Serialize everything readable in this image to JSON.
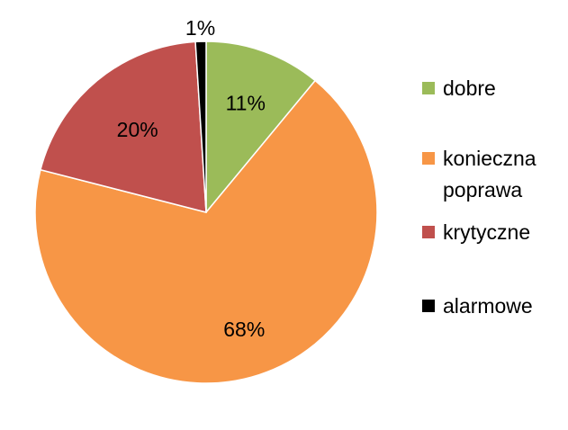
{
  "chart_data": {
    "type": "pie",
    "title": "",
    "slices": [
      {
        "label": "dobre",
        "value": 11,
        "display": "11%",
        "color": "#9bbb59"
      },
      {
        "label": "konieczna poprawa",
        "value": 68,
        "display": "68%",
        "color": "#f79646"
      },
      {
        "label": "krytyczne",
        "value": 20,
        "display": "20%",
        "color": "#c0504d"
      },
      {
        "label": "alarmowe",
        "value": 1,
        "display": "1%",
        "color": "#000000"
      }
    ],
    "legend_position": "right",
    "legend": [
      {
        "lines": [
          "dobre"
        ],
        "color": "#9bbb59"
      },
      {
        "lines": [
          "konieczna",
          "poprawa"
        ],
        "color": "#f79646"
      },
      {
        "lines": [
          "krytyczne"
        ],
        "color": "#c0504d"
      },
      {
        "lines": [
          "alarmowe"
        ],
        "color": "#000000"
      }
    ]
  }
}
